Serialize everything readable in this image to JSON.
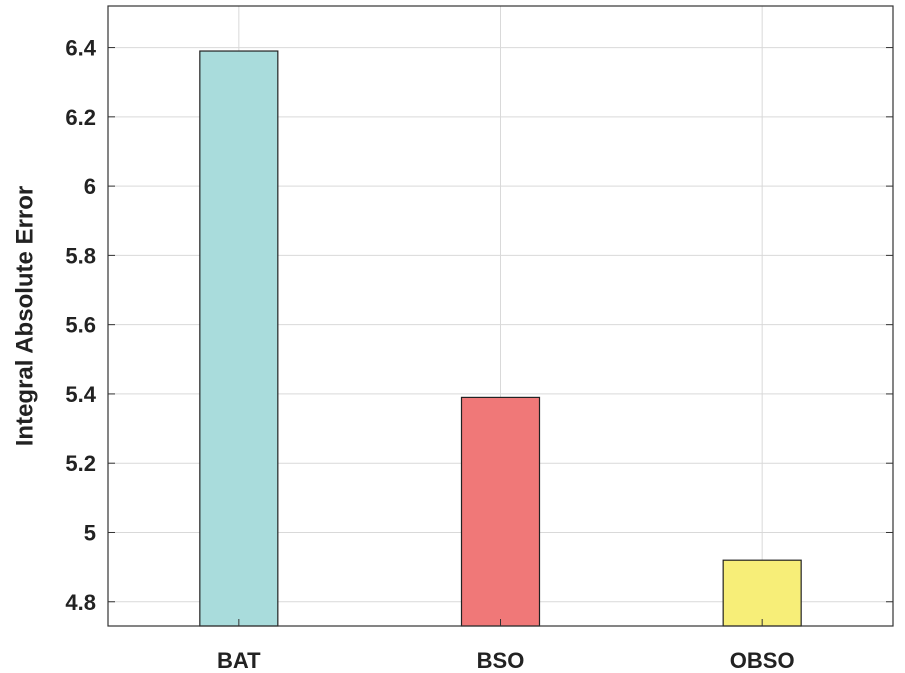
{
  "chart_data": {
    "type": "bar",
    "title": "",
    "xlabel": "",
    "ylabel": "Integral Absolute Error",
    "categories": [
      "BAT",
      "BSO",
      "OBSO"
    ],
    "values": [
      6.39,
      5.39,
      4.92
    ],
    "colors": [
      "#a9dcdc",
      "#f07878",
      "#f7ee78"
    ],
    "ylim": [
      4.73,
      6.52
    ],
    "yticks": [
      4.8,
      5,
      5.2,
      5.4,
      5.6,
      5.8,
      6,
      6.2,
      6.4
    ],
    "ytick_labels": [
      "4.8",
      "5",
      "5.2",
      "5.4",
      "5.6",
      "5.8",
      "6",
      "6.2",
      "6.4"
    ],
    "grid": true,
    "legend": "none"
  }
}
